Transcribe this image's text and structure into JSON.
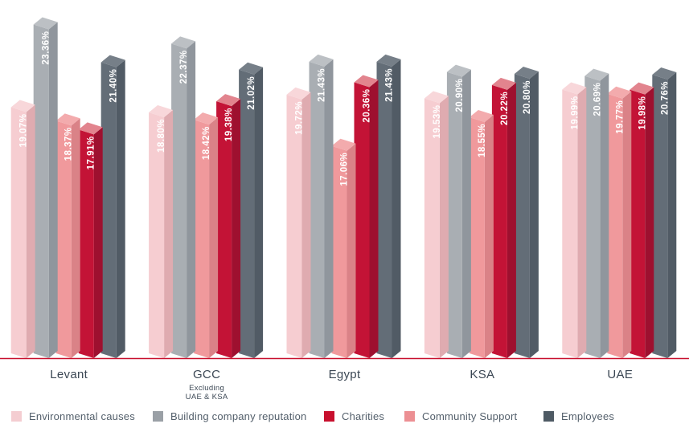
{
  "chart_data": {
    "type": "bar",
    "unit": "%",
    "title": "",
    "categories": [
      {
        "label": "Levant",
        "sublines": []
      },
      {
        "label": "GCC",
        "sublines": [
          "Excluding",
          "UAE & KSA"
        ]
      },
      {
        "label": "Egypt",
        "sublines": []
      },
      {
        "label": "KSA",
        "sublines": []
      },
      {
        "label": "UAE",
        "sublines": []
      }
    ],
    "series": [
      {
        "name": "Environmental causes",
        "values": [
          19.07,
          18.8,
          19.72,
          19.53,
          19.99
        ],
        "colors": {
          "front": "#f6cdd1",
          "side": "#dfabb0",
          "cap": "#f8d7da",
          "legend": "#f4cdd1"
        }
      },
      {
        "name": "Building company reputation",
        "values": [
          23.36,
          22.37,
          21.43,
          20.9,
          20.69
        ],
        "colors": {
          "front": "#a9aeb3",
          "side": "#90969d",
          "cap": "#bcc0c4",
          "legend": "#9aa0a6"
        }
      },
      {
        "name": "Charities",
        "values": [
          17.91,
          19.38,
          20.36,
          20.22,
          19.98
        ],
        "colors": {
          "front": "#c31336",
          "side": "#9e102f",
          "cap": "#e2848e",
          "legend": "#c8102e"
        }
      },
      {
        "name": "Community Support",
        "values": [
          18.37,
          18.42,
          17.06,
          18.55,
          19.77
        ],
        "colors": {
          "front": "#f0999c",
          "side": "#da8287",
          "cap": "#f3abad",
          "legend": "#ec8f93"
        }
      },
      {
        "name": "Employees",
        "values": [
          21.4,
          21.02,
          21.43,
          20.8,
          20.76
        ],
        "colors": {
          "front": "#636d77",
          "side": "#515b65",
          "cap": "#767f88",
          "legend": "#4e5a64"
        }
      }
    ],
    "bar_display_order": [
      0,
      1,
      3,
      2,
      4
    ],
    "axis_line_color": "#c8102e",
    "value_label_color": "#ffffff",
    "ylim": [
      6.3,
      25
    ],
    "grid": false,
    "legend_position": "bottom"
  }
}
